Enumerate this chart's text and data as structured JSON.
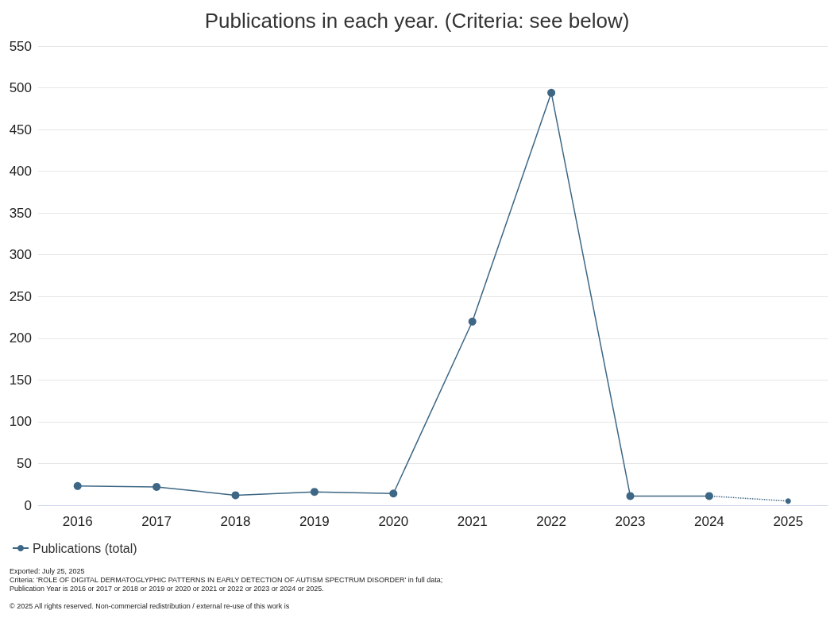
{
  "chart_data": {
    "type": "line",
    "title": "Publications in each year. (Criteria: see below)",
    "categories": [
      "2016",
      "2017",
      "2018",
      "2019",
      "2020",
      "2021",
      "2022",
      "2023",
      "2024",
      "2025"
    ],
    "series": [
      {
        "name": "Publications (total)",
        "color": "#3d6785",
        "line_style": "solid",
        "values": [
          23,
          22,
          12,
          16,
          14,
          220,
          494,
          11,
          11,
          null
        ]
      },
      {
        "color": "#3d6785",
        "line_style": "dotted",
        "values": [
          null,
          null,
          null,
          null,
          null,
          null,
          null,
          null,
          11,
          5
        ]
      }
    ],
    "ylim": [
      0,
      550
    ],
    "yticks": [
      0,
      50,
      100,
      150,
      200,
      250,
      300,
      350,
      400,
      450,
      500,
      550
    ],
    "grid": "y",
    "legend": "bottom left",
    "marker": "circle",
    "annotations": [
      "Exported: July 25, 2025",
      "Criteria: 'ROLE OF DIGITAL DERMATOGLYPHIC PATTERNS IN EARLY DETECTION OF AUTISM SPECTRUM DISORDER' in full data;",
      "Publication Year is 2016 or 2017 or 2018 or 2019 or 2020 or 2021 or 2022 or 2023 or 2024 or 2025.",
      "© 2025 All rights reserved. Non-commercial redistribution / external re-use of this work is"
    ]
  }
}
